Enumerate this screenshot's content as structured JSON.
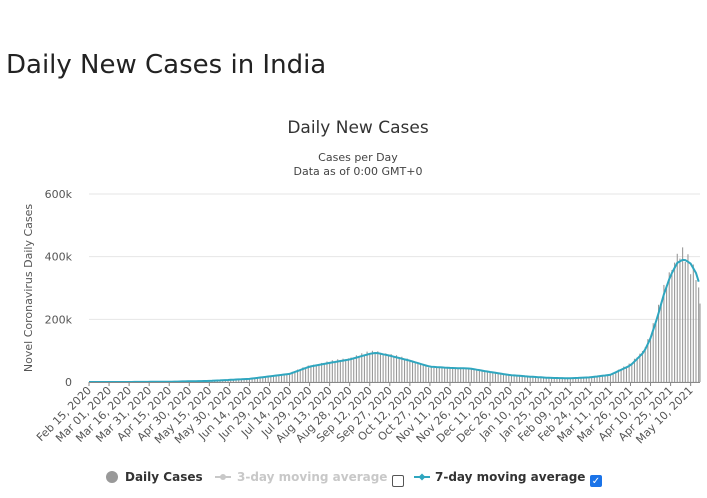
{
  "page": {
    "title": "Daily New Cases in India"
  },
  "legend": {
    "daily": {
      "label": "Daily Cases",
      "color": "#999999",
      "enabled": true
    },
    "ma3": {
      "label": "3-day moving average",
      "color": "#c8c8c8",
      "enabled": false
    },
    "ma7": {
      "label": "7-day moving average",
      "color": "#2fa6bf",
      "enabled": true
    }
  },
  "chart_data": {
    "type": "bar",
    "title": "Daily New Cases",
    "subtitle": [
      "Cases per Day",
      "Data as of 0:00 GMT+0"
    ],
    "ylabel": "Novel Coronavirus Daily Cases",
    "ylim": [
      0,
      600000
    ],
    "yticks": [
      0,
      200000,
      400000,
      600000
    ],
    "ytick_labels": [
      "0",
      "200k",
      "400k",
      "600k"
    ],
    "grid": true,
    "x_start": "Feb 15, 2020",
    "x_end": "May 17, 2021",
    "xtick_labels": [
      "Feb 15, 2020",
      "Mar 01, 2020",
      "Mar 16, 2020",
      "Mar 31, 2020",
      "Apr 15, 2020",
      "Apr 30, 2020",
      "May 15, 2020",
      "May 30, 2020",
      "Jun 14, 2020",
      "Jun 29, 2020",
      "Jul 14, 2020",
      "Jul 29, 2020",
      "Aug 13, 2020",
      "Aug 28, 2020",
      "Sep 12, 2020",
      "Sep 27, 2020",
      "Oct 12, 2020",
      "Oct 27, 2020",
      "Nov 11, 2020",
      "Nov 26, 2020",
      "Dec 11, 2020",
      "Dec 26, 2020",
      "Jan 10, 2021",
      "Jan 25, 2021",
      "Feb 09, 2021",
      "Feb 24, 2021",
      "Mar 11, 2021",
      "Mar 26, 2021",
      "Apr 10, 2021",
      "Apr 25, 2021",
      "May 10, 2021"
    ],
    "series": [
      {
        "name": "Daily Cases",
        "style": "bar",
        "x": [
          "Feb 15, 2020",
          "Mar 16, 2020",
          "Apr 15, 2020",
          "May 15, 2020",
          "Jun 14, 2020",
          "Jul 14, 2020",
          "Jul 29, 2020",
          "Aug 13, 2020",
          "Aug 28, 2020",
          "Sep 12, 2020",
          "Sep 17, 2020",
          "Sep 27, 2020",
          "Oct 12, 2020",
          "Oct 27, 2020",
          "Nov 11, 2020",
          "Nov 26, 2020",
          "Dec 11, 2020",
          "Dec 26, 2020",
          "Jan 10, 2021",
          "Jan 25, 2021",
          "Feb 09, 2021",
          "Feb 24, 2021",
          "Mar 11, 2021",
          "Mar 26, 2021",
          "Apr 05, 2021",
          "Apr 10, 2021",
          "Apr 15, 2021",
          "Apr 20, 2021",
          "Apr 25, 2021",
          "Apr 30, 2021",
          "May 05, 2021",
          "May 10, 2021",
          "May 14, 2021",
          "May 17, 2021"
        ],
        "values": [
          0,
          100,
          1000,
          4000,
          11000,
          28000,
          52000,
          64000,
          76000,
          94000,
          97000,
          86000,
          70000,
          48000,
          45000,
          43000,
          32000,
          22000,
          17000,
          13000,
          12000,
          16000,
          24000,
          58000,
          103000,
          152000,
          217000,
          295000,
          352000,
          402000,
          414000,
          366000,
          343000,
          263000
        ]
      },
      {
        "name": "7-day moving average",
        "style": "line",
        "color": "#2fa6bf",
        "x": [
          "Feb 15, 2020",
          "Mar 16, 2020",
          "Apr 15, 2020",
          "May 15, 2020",
          "Jun 14, 2020",
          "Jul 14, 2020",
          "Jul 29, 2020",
          "Aug 13, 2020",
          "Aug 28, 2020",
          "Sep 12, 2020",
          "Sep 17, 2020",
          "Sep 27, 2020",
          "Oct 12, 2020",
          "Oct 27, 2020",
          "Nov 11, 2020",
          "Nov 26, 2020",
          "Dec 11, 2020",
          "Dec 26, 2020",
          "Jan 10, 2021",
          "Jan 25, 2021",
          "Feb 09, 2021",
          "Feb 24, 2021",
          "Mar 11, 2021",
          "Mar 26, 2021",
          "Apr 05, 2021",
          "Apr 10, 2021",
          "Apr 15, 2021",
          "Apr 20, 2021",
          "Apr 25, 2021",
          "Apr 30, 2021",
          "May 05, 2021",
          "May 10, 2021",
          "May 14, 2021",
          "May 17, 2021"
        ],
        "values": [
          0,
          100,
          900,
          3500,
          10000,
          26000,
          49000,
          61000,
          72000,
          90000,
          93000,
          84000,
          68000,
          49000,
          45000,
          43000,
          32000,
          22000,
          17000,
          13000,
          12000,
          15000,
          23000,
          53000,
          95000,
          140000,
          205000,
          280000,
          340000,
          380000,
          392000,
          378000,
          348000,
          306000
        ]
      }
    ]
  }
}
